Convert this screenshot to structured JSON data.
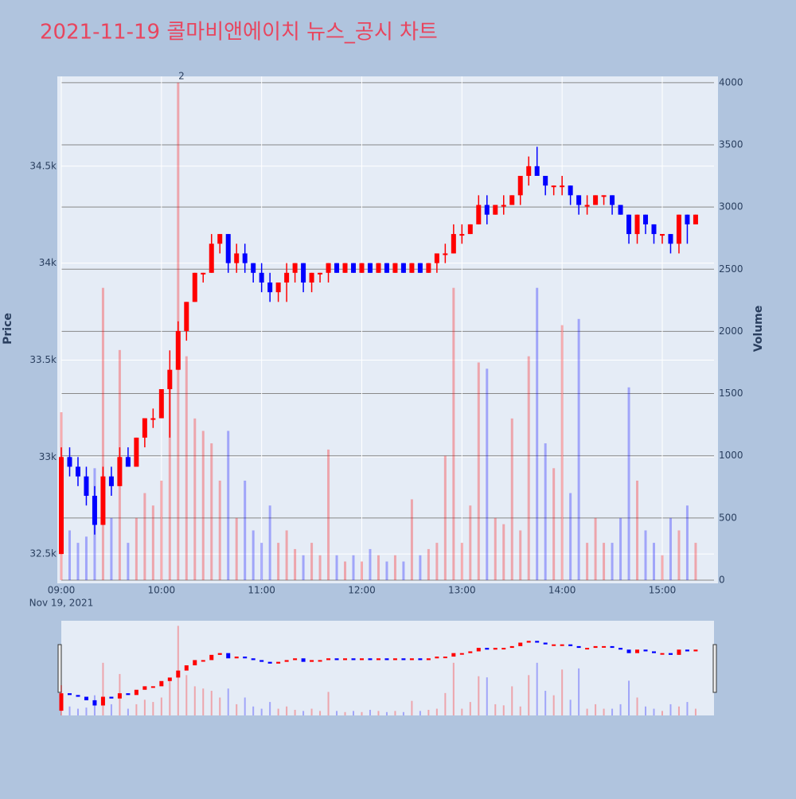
{
  "chart_data": {
    "type": "candlestick",
    "title": "2021-11-19 콜마비앤에이치 뉴스_공시 차트",
    "y_label": "Price",
    "y2_label": "Volume",
    "x_date_label": "Nov 19, 2021",
    "annotation": {
      "x": "2021-11-19 10:12",
      "text": "2"
    },
    "increasing_color": "#ff0000",
    "decreasing_color": "#0000ff",
    "xlim": [
      "2021-11-19 09:00",
      "2021-11-19 15:31"
    ],
    "xticks": [
      {
        "value": "2021-11-19 09:00",
        "label": "09:00"
      },
      {
        "value": "2021-11-19 10:00",
        "label": "10:00"
      },
      {
        "value": "2021-11-19 11:00",
        "label": "11:00"
      },
      {
        "value": "2021-11-19 12:00",
        "label": "12:00"
      },
      {
        "value": "2021-11-19 13:00",
        "label": "13:00"
      },
      {
        "value": "2021-11-19 14:00",
        "label": "14:00"
      },
      {
        "value": "2021-11-19 15:00",
        "label": "15:00"
      }
    ],
    "ylim": [
      32365,
      34963
    ],
    "yticks": [
      {
        "value": 32500,
        "label": "32.5k"
      },
      {
        "value": 33000,
        "label": "33k"
      },
      {
        "value": 33500,
        "label": "33.5k"
      },
      {
        "value": 34000,
        "label": "34k"
      },
      {
        "value": 34500,
        "label": "34.5k"
      }
    ],
    "y2lim": [
      0,
      4050
    ],
    "y2ticks": [
      0,
      500,
      1000,
      1500,
      2000,
      2500,
      3000,
      3500,
      4000
    ],
    "x": [
      "2021-11-19 09:00",
      "2021-11-19 09:05",
      "2021-11-19 09:10",
      "2021-11-19 09:15",
      "2021-11-19 09:20",
      "2021-11-19 09:25",
      "2021-11-19 09:30",
      "2021-11-19 09:35",
      "2021-11-19 09:40",
      "2021-11-19 09:45",
      "2021-11-19 09:50",
      "2021-11-19 09:55",
      "2021-11-19 10:00",
      "2021-11-19 10:05",
      "2021-11-19 10:10",
      "2021-11-19 10:15",
      "2021-11-19 10:20",
      "2021-11-19 10:25",
      "2021-11-19 10:30",
      "2021-11-19 10:35",
      "2021-11-19 10:40",
      "2021-11-19 10:45",
      "2021-11-19 10:50",
      "2021-11-19 10:55",
      "2021-11-19 11:00",
      "2021-11-19 11:05",
      "2021-11-19 11:10",
      "2021-11-19 11:15",
      "2021-11-19 11:20",
      "2021-11-19 11:25",
      "2021-11-19 11:30",
      "2021-11-19 11:35",
      "2021-11-19 11:40",
      "2021-11-19 11:45",
      "2021-11-19 11:50",
      "2021-11-19 11:55",
      "2021-11-19 12:00",
      "2021-11-19 12:05",
      "2021-11-19 12:10",
      "2021-11-19 12:15",
      "2021-11-19 12:20",
      "2021-11-19 12:25",
      "2021-11-19 12:30",
      "2021-11-19 12:35",
      "2021-11-19 12:40",
      "2021-11-19 12:45",
      "2021-11-19 12:50",
      "2021-11-19 12:55",
      "2021-11-19 13:00",
      "2021-11-19 13:05",
      "2021-11-19 13:10",
      "2021-11-19 13:15",
      "2021-11-19 13:20",
      "2021-11-19 13:25",
      "2021-11-19 13:30",
      "2021-11-19 13:35",
      "2021-11-19 13:40",
      "2021-11-19 13:45",
      "2021-11-19 13:50",
      "2021-11-19 13:55",
      "2021-11-19 14:00",
      "2021-11-19 14:05",
      "2021-11-19 14:10",
      "2021-11-19 14:15",
      "2021-11-19 14:20",
      "2021-11-19 14:25",
      "2021-11-19 14:30",
      "2021-11-19 14:35",
      "2021-11-19 14:40",
      "2021-11-19 14:45",
      "2021-11-19 14:50",
      "2021-11-19 14:55",
      "2021-11-19 15:00",
      "2021-11-19 15:05",
      "2021-11-19 15:10",
      "2021-11-19 15:15",
      "2021-11-19 15:20"
    ],
    "open": [
      32500,
      33000,
      32950,
      32900,
      32800,
      32650,
      32900,
      32850,
      33000,
      32950,
      33100,
      33200,
      33200,
      33350,
      33450,
      33650,
      33800,
      33950,
      33950,
      34100,
      34150,
      34000,
      34050,
      34000,
      33950,
      33900,
      33850,
      33900,
      33950,
      34000,
      33900,
      33950,
      33950,
      34000,
      33950,
      34000,
      33950,
      34000,
      33950,
      34000,
      33950,
      34000,
      33950,
      34000,
      33950,
      34000,
      34050,
      34050,
      34150,
      34150,
      34200,
      34300,
      34250,
      34300,
      34300,
      34350,
      34450,
      34500,
      34450,
      34400,
      34400,
      34400,
      34350,
      34300,
      34300,
      34350,
      34350,
      34300,
      34250,
      34150,
      34250,
      34200,
      34150,
      34150,
      34100,
      34250,
      34200
    ],
    "high": [
      33050,
      33050,
      33000,
      32950,
      32850,
      32950,
      32950,
      33050,
      33050,
      33100,
      33200,
      33250,
      33350,
      33550,
      33700,
      33800,
      33950,
      33950,
      34150,
      34150,
      34150,
      34100,
      34100,
      34000,
      34000,
      33950,
      33900,
      34000,
      34000,
      34000,
      33950,
      33950,
      34000,
      34000,
      34000,
      34000,
      34000,
      34000,
      34000,
      34000,
      34000,
      34000,
      34000,
      34000,
      34000,
      34050,
      34100,
      34200,
      34200,
      34200,
      34350,
      34350,
      34300,
      34350,
      34350,
      34450,
      34550,
      34600,
      34450,
      34400,
      34450,
      34400,
      34350,
      34350,
      34350,
      34350,
      34350,
      34300,
      34250,
      34250,
      34250,
      34200,
      34150,
      34150,
      34250,
      34250,
      34250
    ],
    "low": [
      32500,
      32900,
      32850,
      32750,
      32600,
      32650,
      32800,
      32850,
      32950,
      32950,
      33050,
      33150,
      33200,
      33100,
      33450,
      33600,
      33800,
      33900,
      33950,
      34050,
      33950,
      33950,
      33950,
      33900,
      33850,
      33800,
      33800,
      33800,
      33900,
      33850,
      33850,
      33900,
      33900,
      33950,
      33950,
      33950,
      33950,
      33950,
      33950,
      33950,
      33950,
      33950,
      33950,
      33950,
      33950,
      33950,
      34000,
      34050,
      34100,
      34150,
      34200,
      34200,
      34250,
      34250,
      34300,
      34300,
      34400,
      34450,
      34350,
      34350,
      34350,
      34300,
      34250,
      34250,
      34300,
      34300,
      34250,
      34250,
      34100,
      34100,
      34150,
      34100,
      34100,
      34050,
      34050,
      34100,
      34200
    ],
    "close": [
      33000,
      32950,
      32900,
      32800,
      32650,
      32900,
      32850,
      33000,
      32950,
      33100,
      33200,
      33200,
      33350,
      33450,
      33650,
      33800,
      33950,
      33950,
      34100,
      34150,
      34000,
      34050,
      34000,
      33950,
      33900,
      33850,
      33900,
      33950,
      34000,
      33900,
      33950,
      33950,
      34000,
      33950,
      34000,
      33950,
      34000,
      33950,
      34000,
      33950,
      34000,
      33950,
      34000,
      33950,
      34000,
      34050,
      34050,
      34150,
      34150,
      34200,
      34300,
      34250,
      34300,
      34300,
      34350,
      34450,
      34500,
      34450,
      34400,
      34400,
      34400,
      34350,
      34300,
      34300,
      34350,
      34350,
      34300,
      34250,
      34150,
      34250,
      34200,
      34150,
      34150,
      34100,
      34250,
      34200,
      34250
    ],
    "volume": [
      1350,
      400,
      300,
      350,
      900,
      2350,
      500,
      1850,
      300,
      500,
      700,
      600,
      800,
      1600,
      4000,
      1800,
      1300,
      1200,
      1100,
      800,
      1200,
      500,
      800,
      400,
      300,
      600,
      300,
      400,
      250,
      200,
      300,
      200,
      1050,
      200,
      150,
      200,
      150,
      250,
      200,
      150,
      200,
      150,
      650,
      200,
      250,
      300,
      1000,
      2350,
      300,
      600,
      1750,
      1700,
      500,
      450,
      1300,
      400,
      1800,
      2350,
      1100,
      900,
      2050,
      700,
      2100,
      300,
      500,
      300,
      300,
      500,
      1550,
      800,
      400,
      300,
      200,
      500,
      400,
      600,
      300
    ]
  }
}
